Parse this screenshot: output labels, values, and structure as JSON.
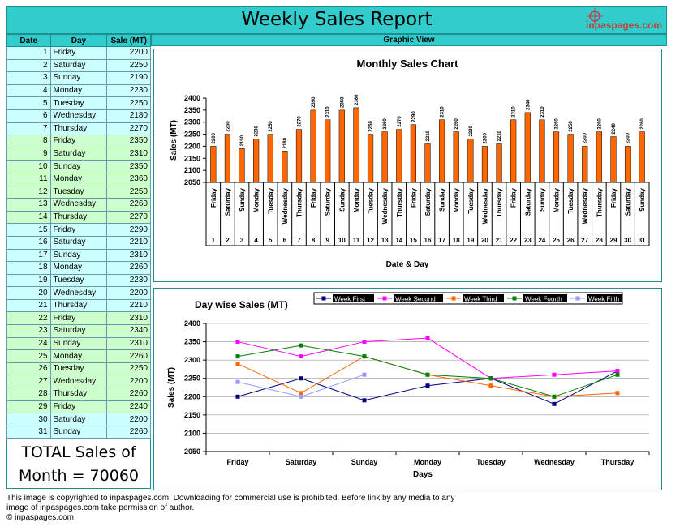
{
  "header": {
    "title": "Weekly Sales Report",
    "logo_text": "inpaspages.com"
  },
  "table": {
    "headers": [
      "Date",
      "Day",
      "Sale (MT)"
    ],
    "rows": [
      {
        "date": "1",
        "day": "Friday",
        "sale": "2200"
      },
      {
        "date": "2",
        "day": "Saturday",
        "sale": "2250"
      },
      {
        "date": "3",
        "day": "Sunday",
        "sale": "2190"
      },
      {
        "date": "4",
        "day": "Monday",
        "sale": "2230"
      },
      {
        "date": "5",
        "day": "Tuesday",
        "sale": "2250"
      },
      {
        "date": "6",
        "day": "Wednesday",
        "sale": "2180"
      },
      {
        "date": "7",
        "day": "Thursday",
        "sale": "2270"
      },
      {
        "date": "8",
        "day": "Friday",
        "sale": "2350"
      },
      {
        "date": "9",
        "day": "Saturday",
        "sale": "2310"
      },
      {
        "date": "10",
        "day": "Sunday",
        "sale": "2350"
      },
      {
        "date": "11",
        "day": "Monday",
        "sale": "2360"
      },
      {
        "date": "12",
        "day": "Tuesday",
        "sale": "2250"
      },
      {
        "date": "13",
        "day": "Wednesday",
        "sale": "2260"
      },
      {
        "date": "14",
        "day": "Thursday",
        "sale": "2270"
      },
      {
        "date": "15",
        "day": "Friday",
        "sale": "2290"
      },
      {
        "date": "16",
        "day": "Saturday",
        "sale": "2210"
      },
      {
        "date": "17",
        "day": "Sunday",
        "sale": "2310"
      },
      {
        "date": "18",
        "day": "Monday",
        "sale": "2260"
      },
      {
        "date": "19",
        "day": "Tuesday",
        "sale": "2230"
      },
      {
        "date": "20",
        "day": "Wednesday",
        "sale": "2200"
      },
      {
        "date": "21",
        "day": "Thursday",
        "sale": "2210"
      },
      {
        "date": "22",
        "day": "Friday",
        "sale": "2310"
      },
      {
        "date": "23",
        "day": "Saturday",
        "sale": "2340"
      },
      {
        "date": "24",
        "day": "Sunday",
        "sale": "2310"
      },
      {
        "date": "25",
        "day": "Monday",
        "sale": "2260"
      },
      {
        "date": "26",
        "day": "Tuesday",
        "sale": "2250"
      },
      {
        "date": "27",
        "day": "Wednesday",
        "sale": "2200"
      },
      {
        "date": "28",
        "day": "Thursday",
        "sale": "2260"
      },
      {
        "date": "29",
        "day": "Friday",
        "sale": "2240"
      },
      {
        "date": "30",
        "day": "Saturday",
        "sale": "2200"
      },
      {
        "date": "31",
        "day": "Sunday",
        "sale": "2260"
      }
    ],
    "row_colors": {
      "plain": "#ccffff",
      "alt": "#ccffcc"
    }
  },
  "total": {
    "line1": "TOTAL Sales of",
    "line2": "Month = 70060"
  },
  "graphic_view_label": "Graphic View",
  "copyright": {
    "line1": "This image is copyrighted to inpaspages.com. Downloading for commercial use is prohibited. Before link by any media to any",
    "line2": "image of inpaspages.com take permission of author.",
    "line3": "© inpaspages.com"
  },
  "chart_data": [
    {
      "type": "bar",
      "title": "Monthly Sales Chart",
      "xlabel": "Date & Day",
      "ylabel": "Sales (MT)",
      "ylim": [
        2050,
        2400
      ],
      "yticks": [
        2050,
        2100,
        2150,
        2200,
        2250,
        2300,
        2350,
        2400
      ],
      "grid": false,
      "bar_color": "#ff6600",
      "categories": [
        "1",
        "2",
        "3",
        "4",
        "5",
        "6",
        "7",
        "8",
        "9",
        "10",
        "11",
        "12",
        "13",
        "14",
        "15",
        "16",
        "17",
        "18",
        "19",
        "20",
        "21",
        "22",
        "23",
        "24",
        "25",
        "26",
        "27",
        "28",
        "29",
        "30",
        "31"
      ],
      "category_days": [
        "Friday",
        "Saturday",
        "Sunday",
        "Monday",
        "Tuesday",
        "Wednesday",
        "Thursday",
        "Friday",
        "Saturday",
        "Sunday",
        "Monday",
        "Tuesday",
        "Wednesday",
        "Thursday",
        "Friday",
        "Saturday",
        "Sunday",
        "Monday",
        "Tuesday",
        "Wednesday",
        "Thursday",
        "Friday",
        "Saturday",
        "Sunday",
        "Monday",
        "Tuesday",
        "Wednesday",
        "Thursday",
        "Friday",
        "Saturday",
        "Sunday"
      ],
      "values": [
        2200,
        2250,
        2190,
        2230,
        2250,
        2180,
        2270,
        2350,
        2310,
        2350,
        2360,
        2250,
        2260,
        2270,
        2290,
        2210,
        2310,
        2260,
        2230,
        2200,
        2210,
        2310,
        2340,
        2310,
        2260,
        2250,
        2200,
        2260,
        2240,
        2200,
        2260
      ]
    },
    {
      "type": "line",
      "title": "Day wise Sales (MT)",
      "xlabel": "Days",
      "ylabel": "Sales (MT)",
      "ylim": [
        2050,
        2400
      ],
      "yticks": [
        2050,
        2100,
        2150,
        2200,
        2250,
        2300,
        2350,
        2400
      ],
      "grid": true,
      "legend": "top",
      "categories": [
        "Friday",
        "Saturday",
        "Sunday",
        "Monday",
        "Tuesday",
        "Wednesday",
        "Thursday"
      ],
      "series": [
        {
          "name": "Week First",
          "color": "#000080",
          "values": [
            2200,
            2250,
            2190,
            2230,
            2250,
            2180,
            2270
          ]
        },
        {
          "name": "Week Second",
          "color": "#ff00ff",
          "values": [
            2350,
            2310,
            2350,
            2360,
            2250,
            2260,
            2270
          ]
        },
        {
          "name": "Week Third",
          "color": "#ff6600",
          "values": [
            2290,
            2210,
            2310,
            2260,
            2230,
            2200,
            2210
          ]
        },
        {
          "name": "Week Fourth",
          "color": "#008000",
          "values": [
            2310,
            2340,
            2310,
            2260,
            2250,
            2200,
            2260
          ]
        },
        {
          "name": "Week Fifth",
          "color": "#9999ff",
          "values": [
            2240,
            2200,
            2260,
            null,
            null,
            null,
            null
          ]
        }
      ]
    }
  ]
}
